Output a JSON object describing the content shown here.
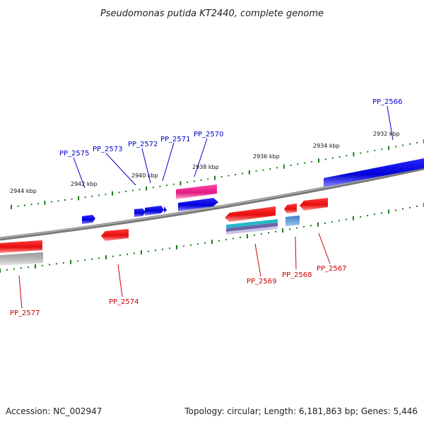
{
  "title": "Pseudomonas putida KT2440, complete genome",
  "footer": {
    "accession": "Accession: NC_002947",
    "summary": "Topology: circular; Length: 6,181,863 bp; Genes: 5,446"
  },
  "colors": {
    "forward_gene": "#0a0ae6",
    "reverse_gene": "#e61414",
    "forward_label": "#0000cc",
    "reverse_label": "#cc0000",
    "tick": "#1b7d1b",
    "backbone": "#888888"
  },
  "ticks": {
    "major": [
      {
        "label": "2944 kbp"
      },
      {
        "label": "2942 kbp"
      },
      {
        "label": "2940 kbp"
      },
      {
        "label": "2938 kbp"
      },
      {
        "label": "2936 kbp"
      },
      {
        "label": "2934 kbp"
      },
      {
        "label": "2932 kbp"
      }
    ]
  },
  "genes": {
    "forward": [
      "PP_2575",
      "PP_2573",
      "PP_2572",
      "PP_2571",
      "PP_2570",
      "PP_2566"
    ],
    "reverse": [
      "PP_2577",
      "PP_2574",
      "PP_2569",
      "PP_2568",
      "PP_2567"
    ]
  }
}
